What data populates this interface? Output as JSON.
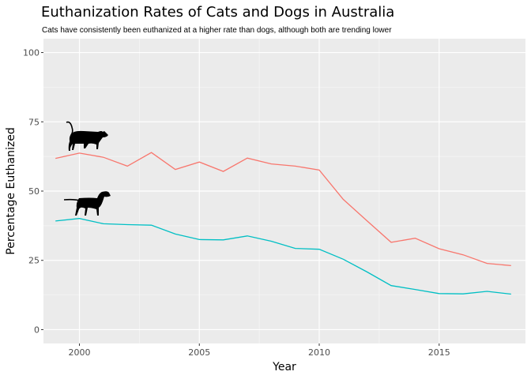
{
  "chart_data": {
    "type": "line",
    "title": "Euthanization Rates of Cats and Dogs in Australia",
    "subtitle": "Cats have consistently been euthanized at a higher rate than dogs, although both are trending lower",
    "xlabel": "Year",
    "ylabel": "Percentage Euthanized",
    "xlim": [
      1998.5,
      2018.6
    ],
    "ylim": [
      -5,
      105
    ],
    "x_ticks": [
      2000,
      2005,
      2010,
      2015
    ],
    "y_ticks": [
      0,
      25,
      50,
      75,
      100
    ],
    "grid": true,
    "legend": "none",
    "x": [
      1999,
      2000,
      2001,
      2002,
      2003,
      2004,
      2005,
      2006,
      2007,
      2008,
      2009,
      2010,
      2011,
      2012,
      2013,
      2014,
      2015,
      2016,
      2017,
      2018
    ],
    "series": [
      {
        "key": "cats",
        "color": "#F8766D",
        "icon": "cat-silhouette-icon",
        "values": [
          61.8,
          63.7,
          62.2,
          59.0,
          63.9,
          57.8,
          60.5,
          57.1,
          61.9,
          59.8,
          59.0,
          57.6,
          47.0,
          39.2,
          31.5,
          33.0,
          29.2,
          27.0,
          23.9,
          23.1
        ]
      },
      {
        "key": "dogs",
        "color": "#00BFC4",
        "icon": "dog-silhouette-icon",
        "values": [
          39.2,
          40.1,
          38.2,
          37.9,
          37.7,
          34.5,
          32.5,
          32.4,
          33.8,
          31.9,
          29.3,
          29.0,
          25.4,
          20.8,
          15.9,
          14.5,
          13.0,
          12.9,
          13.8,
          12.8
        ]
      }
    ]
  }
}
